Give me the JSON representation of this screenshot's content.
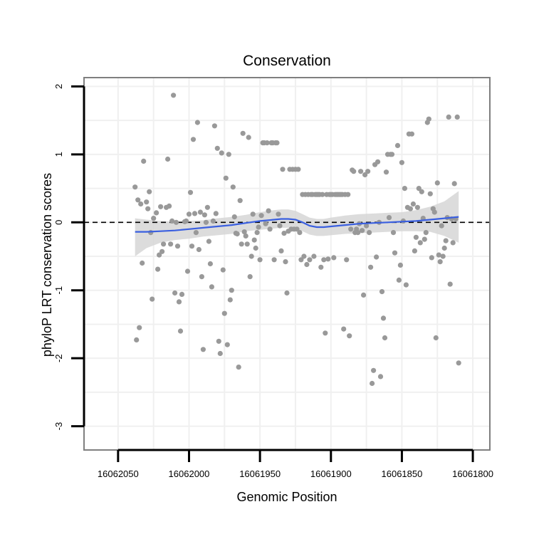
{
  "chart_data": {
    "type": "scatter",
    "title": "Conservation",
    "xlabel": "Genomic Position",
    "ylabel": "phyloP LRT conservation scores",
    "x_reversed": true,
    "xlim": [
      16062074,
      16061788
    ],
    "ylim": [
      -3.35,
      2.13
    ],
    "x_ticks": [
      16062050,
      16062000,
      16061950,
      16061900,
      16061850,
      16061800
    ],
    "x_tick_labels": [
      "16062050",
      "16062000",
      "16061950",
      "16061900",
      "16061850",
      "16061800"
    ],
    "y_ticks": [
      -3,
      -2,
      -1,
      0,
      1,
      2
    ],
    "y_tick_labels": [
      "-3",
      "-2",
      "-1",
      "0",
      "1",
      "2"
    ],
    "grid": true,
    "reference_line": {
      "y": 0,
      "style": "dashed"
    },
    "colors": {
      "points": "#999999",
      "smooth_line": "#3a5fe0",
      "confidence_band": "#d6d6d6",
      "panel_border": "#7f7f7f",
      "grid": "#f0f0f0",
      "reference_line": "#000000"
    },
    "points": [
      [
        16062038,
        0.52
      ],
      [
        16062037,
        -1.73
      ],
      [
        16062036,
        0.33
      ],
      [
        16062035,
        -1.55
      ],
      [
        16062034,
        0.27
      ],
      [
        16062033,
        -0.6
      ],
      [
        16062032,
        0.9
      ],
      [
        16062030,
        0.3
      ],
      [
        16062029,
        0.2
      ],
      [
        16062028,
        0.45
      ],
      [
        16062027,
        -0.15
      ],
      [
        16062026,
        -1.13
      ],
      [
        16062025,
        0.06
      ],
      [
        16062023,
        0.14
      ],
      [
        16062022,
        -0.69
      ],
      [
        16062021,
        -0.48
      ],
      [
        16062020,
        0.23
      ],
      [
        16062019,
        -0.43
      ],
      [
        16062018,
        -0.32
      ],
      [
        16062016,
        0.22
      ],
      [
        16062015,
        0.93
      ],
      [
        16062014,
        0.24
      ],
      [
        16062013,
        -0.32
      ],
      [
        16062012,
        0.02
      ],
      [
        16062011,
        1.87
      ],
      [
        16062010,
        -1.04
      ],
      [
        16062009,
        0.0
      ],
      [
        16062008,
        -0.35
      ],
      [
        16062007,
        -1.17
      ],
      [
        16062006,
        -1.6
      ],
      [
        16062005,
        -1.06
      ],
      [
        16062003,
        0.01
      ],
      [
        16062002,
        0.02
      ],
      [
        16062001,
        -0.72
      ],
      [
        16062000,
        0.12
      ],
      [
        16061999,
        0.44
      ],
      [
        16061998,
        -0.35
      ],
      [
        16061997,
        1.22
      ],
      [
        16061996,
        0.13
      ],
      [
        16061995,
        -0.15
      ],
      [
        16061994,
        1.47
      ],
      [
        16061993,
        -0.4
      ],
      [
        16061992,
        0.15
      ],
      [
        16061991,
        -0.8
      ],
      [
        16061990,
        -1.87
      ],
      [
        16061989,
        0.11
      ],
      [
        16061988,
        0.0
      ],
      [
        16061987,
        0.22
      ],
      [
        16061986,
        -0.28
      ],
      [
        16061985,
        -0.61
      ],
      [
        16061984,
        -0.95
      ],
      [
        16061983,
        0.02
      ],
      [
        16061982,
        1.42
      ],
      [
        16061981,
        0.13
      ],
      [
        16061980,
        1.09
      ],
      [
        16061979,
        -1.75
      ],
      [
        16061978,
        -1.93
      ],
      [
        16061977,
        1.02
      ],
      [
        16061976,
        -0.7
      ],
      [
        16061975,
        -1.34
      ],
      [
        16061974,
        0.65
      ],
      [
        16061973,
        -1.8
      ],
      [
        16061972,
        1.0
      ],
      [
        16061971,
        -1.14
      ],
      [
        16061970,
        -1.0
      ],
      [
        16061969,
        0.52
      ],
      [
        16061968,
        0.08
      ],
      [
        16061967,
        -0.16
      ],
      [
        16061966,
        -0.17
      ],
      [
        16061965,
        -2.13
      ],
      [
        16061964,
        0.32
      ],
      [
        16061963,
        -0.32
      ],
      [
        16061962,
        1.31
      ],
      [
        16061961,
        -0.14
      ],
      [
        16061960,
        -0.2
      ],
      [
        16061959,
        -0.32
      ],
      [
        16061958,
        1.25
      ],
      [
        16061957,
        -0.8
      ],
      [
        16061956,
        -0.5
      ],
      [
        16061955,
        0.12
      ],
      [
        16061954,
        -0.26
      ],
      [
        16061953,
        -0.38
      ],
      [
        16061952,
        -0.15
      ],
      [
        16061951,
        -0.07
      ],
      [
        16061950,
        -0.55
      ],
      [
        16061949,
        0.1
      ],
      [
        16061948,
        1.17
      ],
      [
        16061947,
        1.17
      ],
      [
        16061946,
        -0.02
      ],
      [
        16061945,
        1.17
      ],
      [
        16061944,
        0.17
      ],
      [
        16061943,
        -0.1
      ],
      [
        16061942,
        1.17
      ],
      [
        16061941,
        1.17
      ],
      [
        16061940,
        -0.55
      ],
      [
        16061939,
        1.17
      ],
      [
        16061938,
        1.17
      ],
      [
        16061937,
        0.12
      ],
      [
        16061936,
        -0.05
      ],
      [
        16061935,
        -0.42
      ],
      [
        16061934,
        0.78
      ],
      [
        16061933,
        -0.16
      ],
      [
        16061932,
        -0.58
      ],
      [
        16061931,
        -1.04
      ],
      [
        16061930,
        -0.13
      ],
      [
        16061929,
        0.78
      ],
      [
        16061928,
        -0.1
      ],
      [
        16061927,
        0.78
      ],
      [
        16061926,
        -0.1
      ],
      [
        16061925,
        0.78
      ],
      [
        16061924,
        -0.1
      ],
      [
        16061923,
        0.78
      ],
      [
        16061922,
        -0.15
      ],
      [
        16061921,
        -0.55
      ],
      [
        16061920,
        0.41
      ],
      [
        16061919,
        -0.5
      ],
      [
        16061918,
        0.41
      ],
      [
        16061917,
        -0.62
      ],
      [
        16061916,
        0.41
      ],
      [
        16061915,
        -0.55
      ],
      [
        16061914,
        0.41
      ],
      [
        16061913,
        0.41
      ],
      [
        16061912,
        -0.5
      ],
      [
        16061911,
        0.41
      ],
      [
        16061910,
        0.41
      ],
      [
        16061909,
        0.41
      ],
      [
        16061908,
        0.41
      ],
      [
        16061907,
        -0.66
      ],
      [
        16061906,
        0.41
      ],
      [
        16061905,
        -0.55
      ],
      [
        16061904,
        -1.63
      ],
      [
        16061903,
        0.41
      ],
      [
        16061902,
        -0.54
      ],
      [
        16061901,
        0.41
      ],
      [
        16061900,
        0.41
      ],
      [
        16061899,
        0.41
      ],
      [
        16061898,
        -0.52
      ],
      [
        16061897,
        0.41
      ],
      [
        16061896,
        0.41
      ],
      [
        16061895,
        0.41
      ],
      [
        16061894,
        0.41
      ],
      [
        16061893,
        0.41
      ],
      [
        16061892,
        0.41
      ],
      [
        16061891,
        -1.57
      ],
      [
        16061890,
        0.41
      ],
      [
        16061889,
        -0.55
      ],
      [
        16061888,
        0.41
      ],
      [
        16061887,
        -1.67
      ],
      [
        16061886,
        -0.1
      ],
      [
        16061885,
        0.77
      ],
      [
        16061884,
        0.75
      ],
      [
        16061883,
        -0.15
      ],
      [
        16061882,
        -0.1
      ],
      [
        16061881,
        -0.15
      ],
      [
        16061880,
        -0.02
      ],
      [
        16061879,
        0.75
      ],
      [
        16061878,
        -0.12
      ],
      [
        16061877,
        -1.07
      ],
      [
        16061876,
        0.7
      ],
      [
        16061875,
        -0.05
      ],
      [
        16061874,
        0.75
      ],
      [
        16061873,
        -0.15
      ],
      [
        16061872,
        -0.66
      ],
      [
        16061871,
        -2.37
      ],
      [
        16061870,
        -2.18
      ],
      [
        16061869,
        0.85
      ],
      [
        16061868,
        -0.51
      ],
      [
        16061867,
        0.89
      ],
      [
        16061866,
        0.0
      ],
      [
        16061865,
        -2.27
      ],
      [
        16061864,
        -1.02
      ],
      [
        16061863,
        -1.41
      ],
      [
        16061862,
        -1.7
      ],
      [
        16061861,
        0.74
      ],
      [
        16061860,
        1.0
      ],
      [
        16061859,
        0.07
      ],
      [
        16061858,
        1.0
      ],
      [
        16061857,
        1.0
      ],
      [
        16061856,
        -0.15
      ],
      [
        16061855,
        -0.45
      ],
      [
        16061853,
        1.13
      ],
      [
        16061852,
        -0.85
      ],
      [
        16061851,
        -0.63
      ],
      [
        16061850,
        0.88
      ],
      [
        16061849,
        0.02
      ],
      [
        16061848,
        0.5
      ],
      [
        16061847,
        -0.92
      ],
      [
        16061846,
        0.22
      ],
      [
        16061845,
        1.3
      ],
      [
        16061844,
        0.2
      ],
      [
        16061843,
        1.3
      ],
      [
        16061842,
        0.27
      ],
      [
        16061841,
        -0.42
      ],
      [
        16061840,
        -0.22
      ],
      [
        16061839,
        0.22
      ],
      [
        16061838,
        0.5
      ],
      [
        16061837,
        -0.3
      ],
      [
        16061836,
        0.45
      ],
      [
        16061835,
        0.06
      ],
      [
        16061834,
        -0.25
      ],
      [
        16061833,
        -0.15
      ],
      [
        16061832,
        1.47
      ],
      [
        16061831,
        1.52
      ],
      [
        16061830,
        0.42
      ],
      [
        16061829,
        -0.52
      ],
      [
        16061828,
        0.2
      ],
      [
        16061827,
        0.15
      ],
      [
        16061826,
        -1.7
      ],
      [
        16061825,
        0.58
      ],
      [
        16061824,
        -0.48
      ],
      [
        16061823,
        -0.58
      ],
      [
        16061822,
        -0.05
      ],
      [
        16061821,
        -0.5
      ],
      [
        16061820,
        -0.38
      ],
      [
        16061819,
        -0.27
      ],
      [
        16061818,
        0.07
      ],
      [
        16061817,
        1.55
      ],
      [
        16061816,
        -0.91
      ],
      [
        16061815,
        0.05
      ],
      [
        16061814,
        -0.3
      ],
      [
        16061813,
        0.57
      ],
      [
        16061812,
        0.05
      ],
      [
        16061811,
        1.55
      ],
      [
        16061810,
        -2.07
      ]
    ],
    "smooth": [
      [
        16062038,
        -0.14
      ],
      [
        16062030,
        -0.14
      ],
      [
        16062020,
        -0.13
      ],
      [
        16062010,
        -0.12
      ],
      [
        16062000,
        -0.1
      ],
      [
        16061990,
        -0.08
      ],
      [
        16061980,
        -0.06
      ],
      [
        16061970,
        -0.04
      ],
      [
        16061960,
        -0.01
      ],
      [
        16061950,
        0.02
      ],
      [
        16061940,
        0.04
      ],
      [
        16061935,
        0.05
      ],
      [
        16061930,
        0.05
      ],
      [
        16061925,
        0.04
      ],
      [
        16061920,
        0.0
      ],
      [
        16061915,
        -0.05
      ],
      [
        16061910,
        -0.07
      ],
      [
        16061905,
        -0.07
      ],
      [
        16061900,
        -0.06
      ],
      [
        16061890,
        -0.04
      ],
      [
        16061880,
        -0.02
      ],
      [
        16061870,
        -0.01
      ],
      [
        16061860,
        0.0
      ],
      [
        16061850,
        0.01
      ],
      [
        16061840,
        0.02
      ],
      [
        16061830,
        0.04
      ],
      [
        16061820,
        0.06
      ],
      [
        16061810,
        0.08
      ]
    ],
    "band_upper": [
      [
        16062038,
        0.06
      ],
      [
        16062030,
        0.04
      ],
      [
        16062020,
        0.02
      ],
      [
        16062010,
        0.01
      ],
      [
        16062000,
        0.02
      ],
      [
        16061990,
        0.03
      ],
      [
        16061980,
        0.06
      ],
      [
        16061970,
        0.08
      ],
      [
        16061960,
        0.11
      ],
      [
        16061950,
        0.15
      ],
      [
        16061940,
        0.18
      ],
      [
        16061935,
        0.19
      ],
      [
        16061930,
        0.19
      ],
      [
        16061925,
        0.17
      ],
      [
        16061920,
        0.12
      ],
      [
        16061915,
        0.07
      ],
      [
        16061910,
        0.05
      ],
      [
        16061905,
        0.05
      ],
      [
        16061900,
        0.07
      ],
      [
        16061890,
        0.1
      ],
      [
        16061880,
        0.12
      ],
      [
        16061870,
        0.13
      ],
      [
        16061860,
        0.14
      ],
      [
        16061850,
        0.15
      ],
      [
        16061840,
        0.18
      ],
      [
        16061830,
        0.23
      ],
      [
        16061820,
        0.31
      ],
      [
        16061810,
        0.46
      ]
    ],
    "band_lower": [
      [
        16062038,
        -0.5
      ],
      [
        16062030,
        -0.38
      ],
      [
        16062020,
        -0.3
      ],
      [
        16062010,
        -0.26
      ],
      [
        16062000,
        -0.24
      ],
      [
        16061990,
        -0.21
      ],
      [
        16061980,
        -0.19
      ],
      [
        16061970,
        -0.17
      ],
      [
        16061960,
        -0.13
      ],
      [
        16061950,
        -0.11
      ],
      [
        16061940,
        -0.09
      ],
      [
        16061935,
        -0.08
      ],
      [
        16061930,
        -0.08
      ],
      [
        16061925,
        -0.09
      ],
      [
        16061920,
        -0.13
      ],
      [
        16061915,
        -0.18
      ],
      [
        16061910,
        -0.2
      ],
      [
        16061905,
        -0.2
      ],
      [
        16061900,
        -0.19
      ],
      [
        16061890,
        -0.17
      ],
      [
        16061880,
        -0.16
      ],
      [
        16061870,
        -0.15
      ],
      [
        16061860,
        -0.14
      ],
      [
        16061850,
        -0.13
      ],
      [
        16061840,
        -0.13
      ],
      [
        16061830,
        -0.14
      ],
      [
        16061820,
        -0.2
      ],
      [
        16061810,
        -0.3
      ]
    ]
  }
}
